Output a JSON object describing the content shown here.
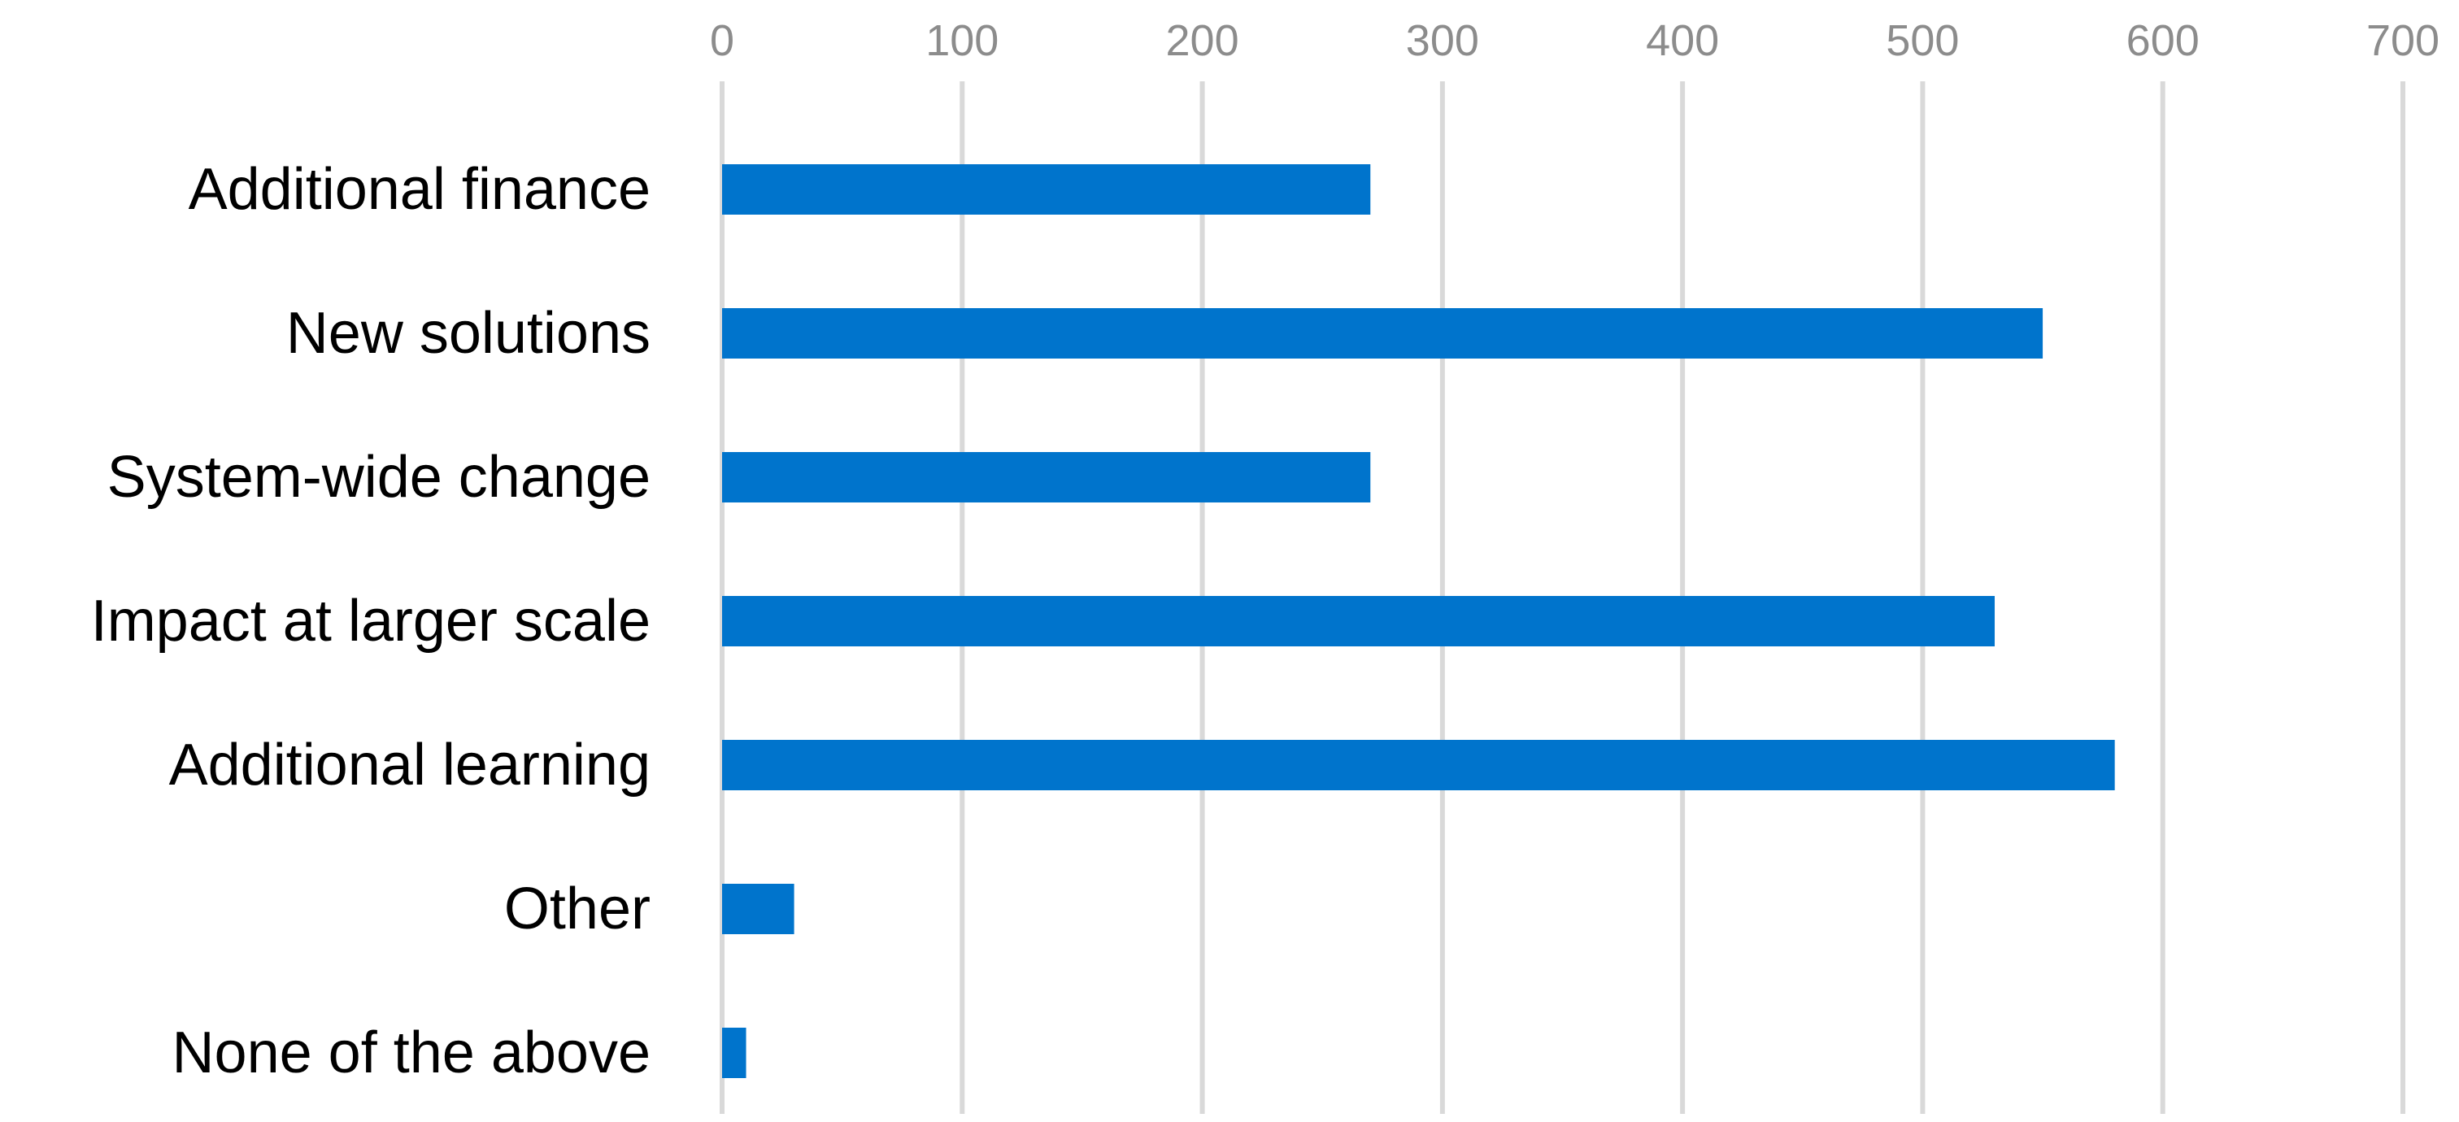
{
  "chart_data": {
    "type": "bar",
    "orientation": "horizontal",
    "categories": [
      "Additional finance",
      "New solutions",
      "System-wide change",
      "Impact at larger scale",
      "Additional learning",
      "Other",
      "None of the above"
    ],
    "values": [
      270,
      550,
      270,
      530,
      580,
      30,
      10
    ],
    "xlim": [
      0,
      700
    ],
    "xticks": [
      "0",
      "100",
      "200",
      "300",
      "400",
      "500",
      "600",
      "700"
    ],
    "x_axis_position": "top",
    "grid": true,
    "legend": "none",
    "bar_color": "#0074CC"
  }
}
